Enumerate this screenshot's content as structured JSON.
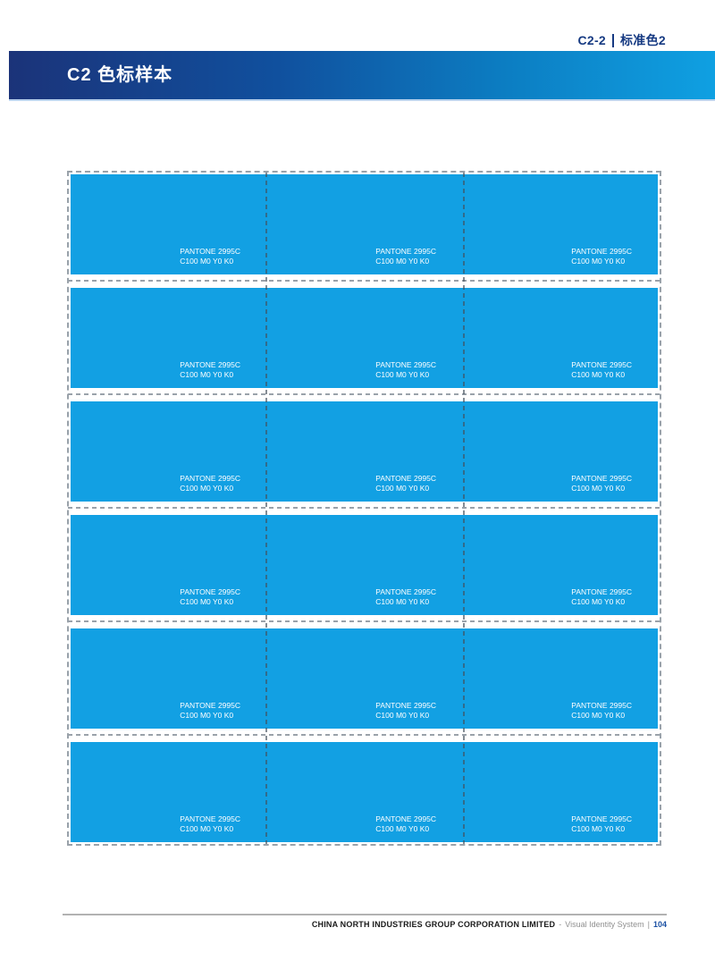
{
  "page_label": {
    "code": "C2-2",
    "title": "标准色2"
  },
  "header": {
    "title": "C2 色标样本"
  },
  "swatch_grid": {
    "rows": 6,
    "columns": 3,
    "swatch": {
      "pantone": "PANTONE 2995C",
      "cmyk": "C100 M0 Y0 K0",
      "color_hex": "#12a0e3"
    }
  },
  "footer": {
    "company": "CHINA NORTH INDUSTRIES GROUP CORPORATION LIMITED",
    "divider": "-",
    "system": "Visual Identity System",
    "separator": "|",
    "page_number": "104"
  },
  "colors": {
    "swatch_blue": "#12a0e3",
    "navy_text": "#163a82",
    "bar_gradient_start": "#1b3379",
    "bar_gradient_end": "#0fa0e2",
    "bar_underline": "#bcd4ee",
    "footer_rule_gray": "#b2b2b2",
    "page_number_blue": "#1a50a3",
    "cut_mark_gray": "#9aa2aa"
  }
}
